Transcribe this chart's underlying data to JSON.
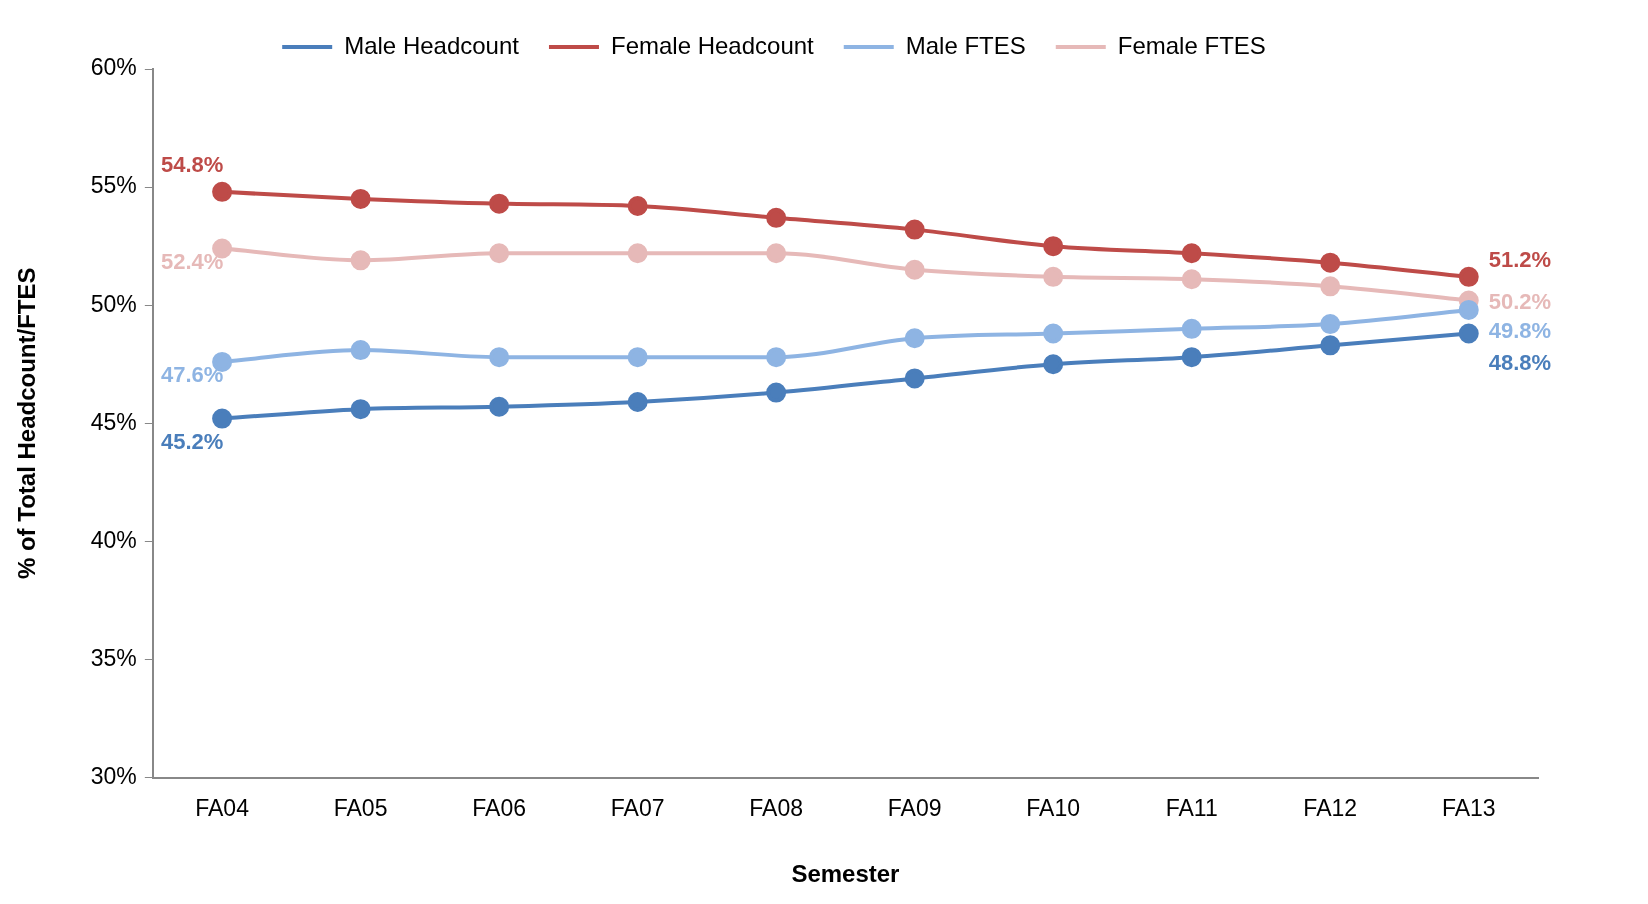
{
  "chart_data": {
    "type": "line",
    "xlabel": "Semester",
    "ylabel": "% of Total Headcount/FTES",
    "categories": [
      "FA04",
      "FA05",
      "FA06",
      "FA07",
      "FA08",
      "FA09",
      "FA10",
      "FA11",
      "FA12",
      "FA13"
    ],
    "series": [
      {
        "name": "Male Headcount",
        "color": "#4a7ebb",
        "values": [
          45.2,
          45.6,
          45.7,
          45.9,
          46.3,
          46.9,
          47.5,
          47.8,
          48.3,
          48.8
        ],
        "value_labels": [
          "45.2%",
          null,
          null,
          null,
          null,
          null,
          null,
          null,
          null,
          "48.8%"
        ]
      },
      {
        "name": "Female Headcount",
        "color": "#be4b48",
        "values": [
          54.8,
          54.5,
          54.3,
          54.2,
          53.7,
          53.2,
          52.5,
          52.2,
          51.8,
          51.2
        ],
        "value_labels": [
          "54.8%",
          null,
          null,
          null,
          null,
          null,
          null,
          null,
          null,
          "51.2%"
        ]
      },
      {
        "name": "Male FTES",
        "color": "#8eb4e3",
        "values": [
          47.6,
          48.1,
          47.8,
          47.8,
          47.8,
          48.6,
          48.8,
          49.0,
          49.2,
          49.8
        ],
        "value_labels": [
          "47.6%",
          null,
          null,
          null,
          null,
          null,
          null,
          null,
          null,
          "49.8%"
        ]
      },
      {
        "name": "Female FTES",
        "color": "#e6b9b8",
        "values": [
          52.4,
          51.9,
          52.2,
          52.2,
          52.2,
          51.5,
          51.2,
          51.1,
          50.8,
          50.2
        ],
        "value_labels": [
          "52.4%",
          null,
          null,
          null,
          null,
          null,
          null,
          null,
          null,
          "50.2%"
        ]
      }
    ],
    "ylim": [
      30,
      60
    ],
    "yticks": [
      {
        "value": 30,
        "label": "30%"
      },
      {
        "value": 35,
        "label": "35%"
      },
      {
        "value": 40,
        "label": "40%"
      },
      {
        "value": 45,
        "label": "45%"
      },
      {
        "value": 50,
        "label": "50%"
      },
      {
        "value": 55,
        "label": "55%"
      },
      {
        "value": 60,
        "label": "60%"
      }
    ],
    "grid": false,
    "legend": "top",
    "marker": "circle",
    "line_style": "solid"
  }
}
